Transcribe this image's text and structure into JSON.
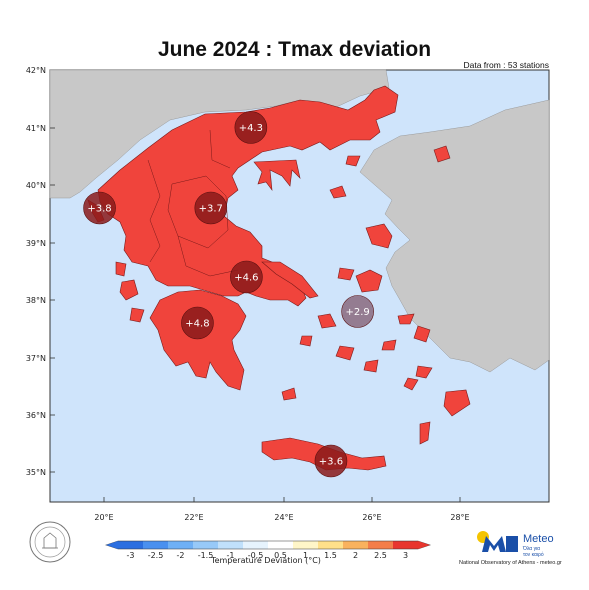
{
  "title": "June 2024 : Tmax deviation",
  "stations_note": "Data from : 53 stations",
  "lat_labels": [
    "42°N",
    "41°N",
    "40°N",
    "39°N",
    "38°N",
    "37°N",
    "36°N",
    "35°N"
  ],
  "lon_labels": [
    "20°E",
    "22°E",
    "24°E",
    "26°E",
    "28°E"
  ],
  "markers": [
    {
      "label": "+4.3",
      "lat": 41.0,
      "lon": 23.3,
      "value": 4.3
    },
    {
      "label": "+3.8",
      "lat": 39.6,
      "lon": 19.9,
      "value": 3.8
    },
    {
      "label": "+3.7",
      "lat": 39.6,
      "lon": 22.4,
      "value": 3.7
    },
    {
      "label": "+4.6",
      "lat": 38.4,
      "lon": 23.2,
      "value": 4.6
    },
    {
      "label": "+4.8",
      "lat": 37.6,
      "lon": 22.1,
      "value": 4.8
    },
    {
      "label": "+2.9",
      "lat": 37.8,
      "lon": 25.7,
      "value": 2.9
    },
    {
      "label": "+3.6",
      "lat": 35.2,
      "lon": 25.1,
      "value": 3.6
    }
  ],
  "colorbar": {
    "ticks": [
      "-3",
      "-2.5",
      "-2",
      "-1.5",
      "-1",
      "-0.5",
      "0.5",
      "1",
      "1.5",
      "2",
      "2.5",
      "3"
    ],
    "colors": [
      "#2c6fe0",
      "#4a90ef",
      "#6fb0f5",
      "#97c9f8",
      "#c0e0fb",
      "#e6f3fd",
      "#ffffff",
      "#fff6c8",
      "#ffe08a",
      "#f9b25e",
      "#f37e4a",
      "#e8362e"
    ],
    "label": "Temperature Deviation (°C)"
  },
  "logo": {
    "name": "Meteo",
    "tagline_1": "Όλα για",
    "tagline_2": "τον καιρό"
  },
  "credit": "National Observatory of Athens - meteo.gr",
  "colors": {
    "sea": "#cfe4fb",
    "land_other": "#c8c8c8",
    "greece": "#f0443c",
    "marker_dark": "#8a1a1a",
    "marker_light": "#8a6a7e"
  }
}
